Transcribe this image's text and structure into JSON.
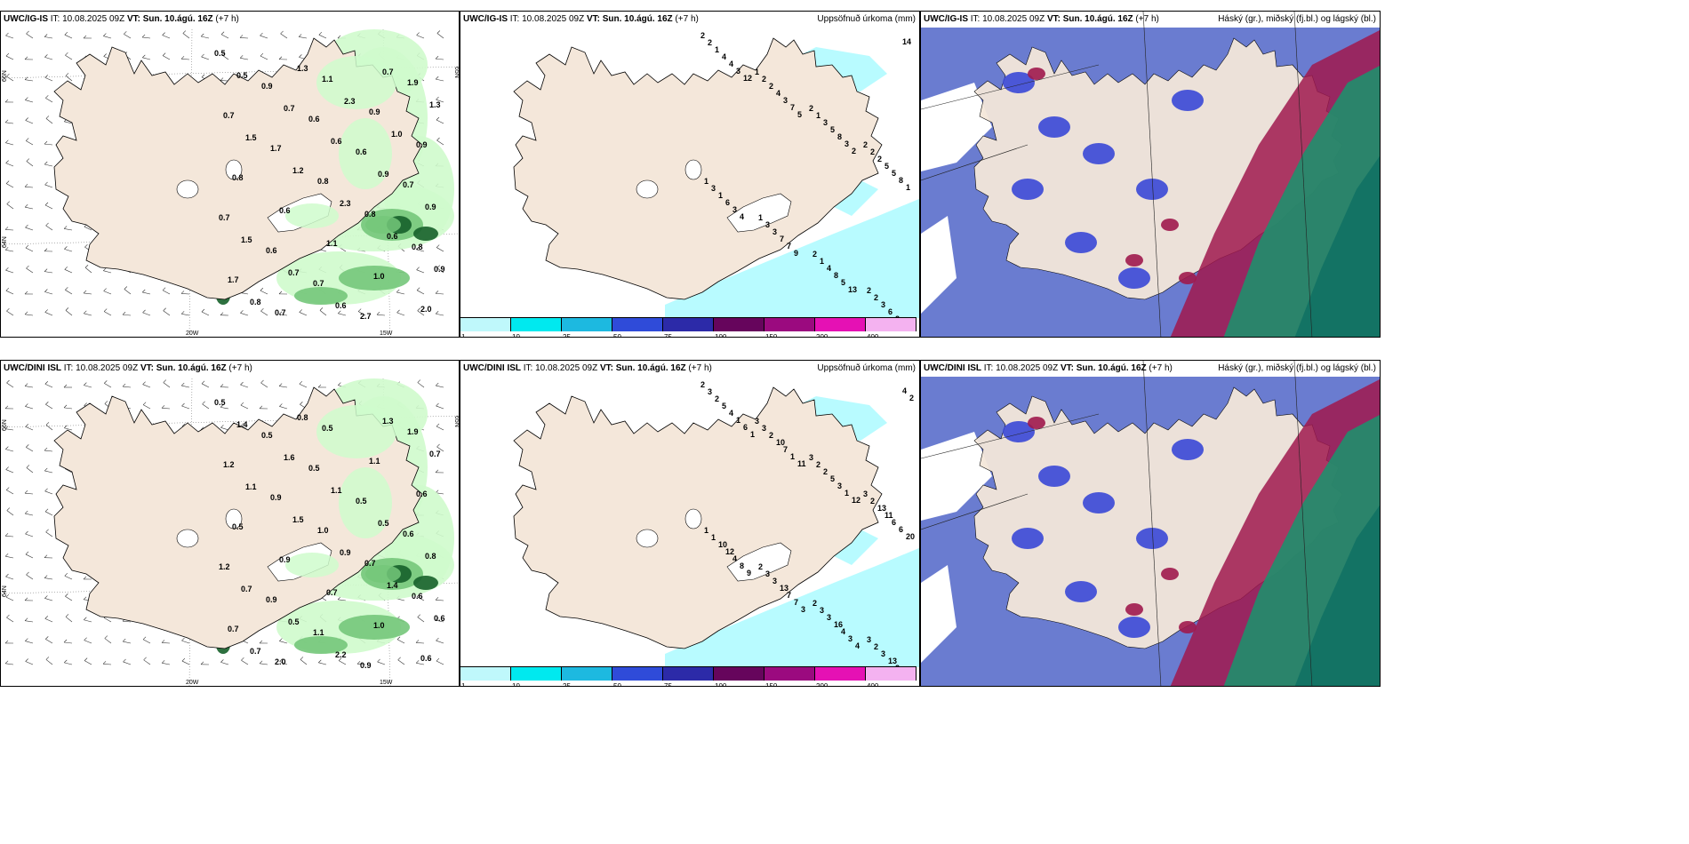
{
  "panels": [
    {
      "id": "p1",
      "title_model": "UWC/IG-IS",
      "title_it": " IT: 10.08.2025 09Z ",
      "title_vt": "VT: Sun. 10.ágú. 16Z",
      "title_lead": " (+7 h)",
      "right_title": "",
      "values": [
        "0.5",
        "0.9",
        "0.6",
        "0.6",
        "0.7",
        "0.7",
        "0.6",
        "0.7",
        "2.7",
        "1.9",
        "0.7",
        "1.7",
        "0.8",
        "0.8",
        "0.8",
        "1.7",
        "0.7",
        "1.1",
        "0.9",
        "0.9",
        "0.8",
        "0.6",
        "1.1",
        "1.0",
        "2.0",
        "0.5",
        "0.7",
        "0.6",
        "0.9",
        "0.9",
        "1.5",
        "0.7",
        "0.6",
        "0.7",
        "1.3",
        "1.5",
        "1.2",
        "2.3",
        "0.6",
        "0.9",
        "0.8",
        "1.3",
        "2.3",
        "1.0"
      ],
      "axis_labels": [
        "66N",
        "64N",
        "65N",
        "20W",
        "15W"
      ]
    },
    {
      "id": "p2",
      "title_model": "UWC/IG-IS",
      "title_it": " IT: 10.08.2025 09Z ",
      "title_vt": "VT: Sun. 10.ágú. 16Z",
      "title_lead": " (+7 h)",
      "right_title": "Uppsöfnuð úrkoma (mm)",
      "values": [
        "2",
        "1",
        "2",
        "2",
        "1",
        "1",
        "2",
        "2",
        "2",
        "2",
        "1",
        "2",
        "3",
        "3",
        "1",
        "2",
        "1",
        "2",
        "3",
        "2",
        "1",
        "3",
        "4",
        "3",
        "4",
        "4",
        "5",
        "5",
        "6",
        "7",
        "8",
        "6",
        "4",
        "3",
        "8",
        "5",
        "3",
        "7",
        "5",
        "2",
        "3",
        "7",
        "3",
        "8",
        "4",
        "9",
        "13",
        "14",
        "12",
        "5",
        "2",
        "1"
      ],
      "legend": [
        "1",
        "10",
        "25",
        "50",
        "75",
        "100",
        "150",
        "200",
        "400"
      ]
    },
    {
      "id": "p3",
      "title_model": "UWC/IG-IS",
      "title_it": " IT: 10.08.2025 09Z ",
      "title_vt": "VT: Sun. 10.ágú. 16Z",
      "title_lead": " (+7 h)",
      "right_title": "Háský (gr.), miðský (fj.bl.) og lágský (bl.)"
    },
    {
      "id": "p4",
      "title_model": "UWC/DINI ISL",
      "title_it": " IT: 10.08.2025 09Z ",
      "title_vt": "VT: Sun. 10.ágú. 16Z",
      "title_lead": " (+7 h)",
      "right_title": "",
      "values": [
        "0.5",
        "0.5",
        "0.5",
        "0.5",
        "0.6",
        "1.2",
        "0.9",
        "1.1",
        "0.9",
        "1.9",
        "1.2",
        "0.9",
        "1.0",
        "0.7",
        "0.6",
        "0.7",
        "2.0",
        "0.5",
        "1.1",
        "0.6",
        "0.5",
        "0.9",
        "0.7",
        "1.0",
        "0.6",
        "1.4",
        "1.6",
        "1.1",
        "0.5",
        "0.8",
        "0.7",
        "0.5",
        "2.2",
        "1.3",
        "0.7",
        "1.1",
        "1.5",
        "0.9",
        "1.4",
        "0.6",
        "0.7",
        "0.8"
      ],
      "axis_labels": [
        "66N",
        "64N",
        "65N",
        "20W",
        "15W"
      ]
    },
    {
      "id": "p5",
      "title_model": "UWC/DINI ISL",
      "title_it": " IT: 10.08.2025 09Z ",
      "title_vt": "VT: Sun. 10.ágú. 16Z",
      "title_lead": " (+7 h)",
      "right_title": "Uppsöfnuð úrkoma (mm)",
      "values": [
        "2",
        "3",
        "3",
        "3",
        "1",
        "2",
        "2",
        "3",
        "3",
        "3",
        "2",
        "2",
        "1",
        "3",
        "3",
        "2",
        "2",
        "2",
        "2",
        "13",
        "10",
        "3",
        "3",
        "3",
        "5",
        "10",
        "5",
        "11",
        "12",
        "13",
        "16",
        "13",
        "4",
        "7",
        "3",
        "6",
        "4",
        "7",
        "4",
        "2",
        "1",
        "1",
        "1",
        "6",
        "8",
        "7",
        "3",
        "4",
        "6",
        "11",
        "12",
        "20",
        "9",
        "3",
        "4",
        "2",
        "1"
      ],
      "legend": [
        "1",
        "10",
        "25",
        "50",
        "75",
        "100",
        "150",
        "200",
        "400"
      ]
    },
    {
      "id": "p6",
      "title_model": "UWC/DINI ISL",
      "title_it": " IT: 10.08.2025 09Z ",
      "title_vt": "VT: Sun. 10.ágú. 16Z",
      "title_lead": " (+7 h)",
      "right_title": "Háský (gr.), miðský (fj.bl.) og lágský (bl.)"
    }
  ],
  "colors": {
    "land": "#f4e7da",
    "precip_light": "#cffbcc",
    "precip_mid": "#74c77a",
    "precip_dark": "#16612a",
    "ocean_precip": "#b8fbff",
    "cloud_high": "#1f8f6d",
    "cloud_mid": "#a0194d",
    "cloud_low": "#3a48d6",
    "sky": "#6a7cd0"
  },
  "legend_colors": [
    "#bff8fb",
    "#00e9ef",
    "#1db9e0",
    "#2f4bd9",
    "#2c2aa8",
    "#66055c",
    "#9b0a7f",
    "#e511b4",
    "#f4b2f0"
  ]
}
